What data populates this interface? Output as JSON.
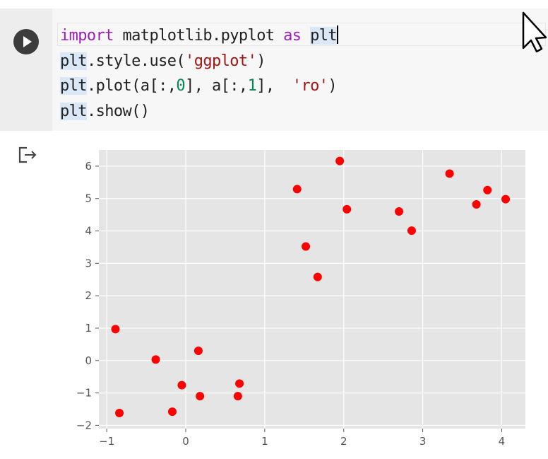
{
  "code_cell": {
    "lines": [
      [
        {
          "t": "import",
          "c": "kw"
        },
        {
          "t": " matplotlib.pyplot ",
          "c": ""
        },
        {
          "t": "as",
          "c": "kw"
        },
        {
          "t": " ",
          "c": ""
        },
        {
          "t": "plt",
          "c": "hl"
        }
      ],
      [
        {
          "t": "plt",
          "c": ""
        },
        {
          "t": ".style.use(",
          "c": ""
        },
        {
          "t": "'ggplot'",
          "c": "str"
        },
        {
          "t": ")",
          "c": ""
        }
      ],
      [
        {
          "t": "plt",
          "c": ""
        },
        {
          "t": ".plot(a[:,",
          "c": ""
        },
        {
          "t": "0",
          "c": "num"
        },
        {
          "t": "], a[:,",
          "c": ""
        },
        {
          "t": "1",
          "c": "num"
        },
        {
          "t": "],  ",
          "c": ""
        },
        {
          "t": "'ro'",
          "c": "str"
        },
        {
          "t": ")",
          "c": ""
        }
      ],
      [
        {
          "t": "plt",
          "c": ""
        },
        {
          "t": ".show()",
          "c": ""
        }
      ]
    ],
    "run_icon": "play-icon"
  },
  "output": {
    "icon": "output-arrow-icon"
  },
  "colors": {
    "plot_bg": "#e5e5e5",
    "grid": "#ffffff",
    "marker": "#ff0000",
    "keyword": "#9b1fb4",
    "string": "#a31515",
    "number": "#098658"
  },
  "chart_data": {
    "type": "scatter",
    "title": "",
    "xlabel": "",
    "ylabel": "",
    "style": "ggplot",
    "marker": "ro",
    "xlim": [
      -1.1,
      4.3
    ],
    "ylim": [
      -2.1,
      6.5
    ],
    "xticks": [
      -1,
      0,
      1,
      2,
      3,
      4
    ],
    "yticks": [
      -2,
      -1,
      0,
      1,
      2,
      3,
      4,
      5,
      6
    ],
    "xtick_labels": [
      "−1",
      "0",
      "1",
      "2",
      "3",
      "4"
    ],
    "ytick_labels": [
      "−2",
      "−1",
      "0",
      "1",
      "2",
      "3",
      "4",
      "5",
      "6"
    ],
    "grid": true,
    "points": [
      {
        "x": -0.89,
        "y": 0.97
      },
      {
        "x": -0.84,
        "y": -1.62
      },
      {
        "x": -0.38,
        "y": 0.03
      },
      {
        "x": -0.17,
        "y": -1.58
      },
      {
        "x": -0.05,
        "y": -0.76
      },
      {
        "x": 0.16,
        "y": 0.3
      },
      {
        "x": 0.18,
        "y": -1.1
      },
      {
        "x": 0.66,
        "y": -1.1
      },
      {
        "x": 0.68,
        "y": -0.71
      },
      {
        "x": 1.41,
        "y": 5.29
      },
      {
        "x": 1.52,
        "y": 3.52
      },
      {
        "x": 1.67,
        "y": 2.58
      },
      {
        "x": 1.95,
        "y": 6.16
      },
      {
        "x": 2.04,
        "y": 4.67
      },
      {
        "x": 2.7,
        "y": 4.6
      },
      {
        "x": 2.86,
        "y": 4.01
      },
      {
        "x": 3.34,
        "y": 5.77
      },
      {
        "x": 3.68,
        "y": 4.82
      },
      {
        "x": 3.82,
        "y": 5.26
      },
      {
        "x": 4.05,
        "y": 4.98
      }
    ]
  }
}
